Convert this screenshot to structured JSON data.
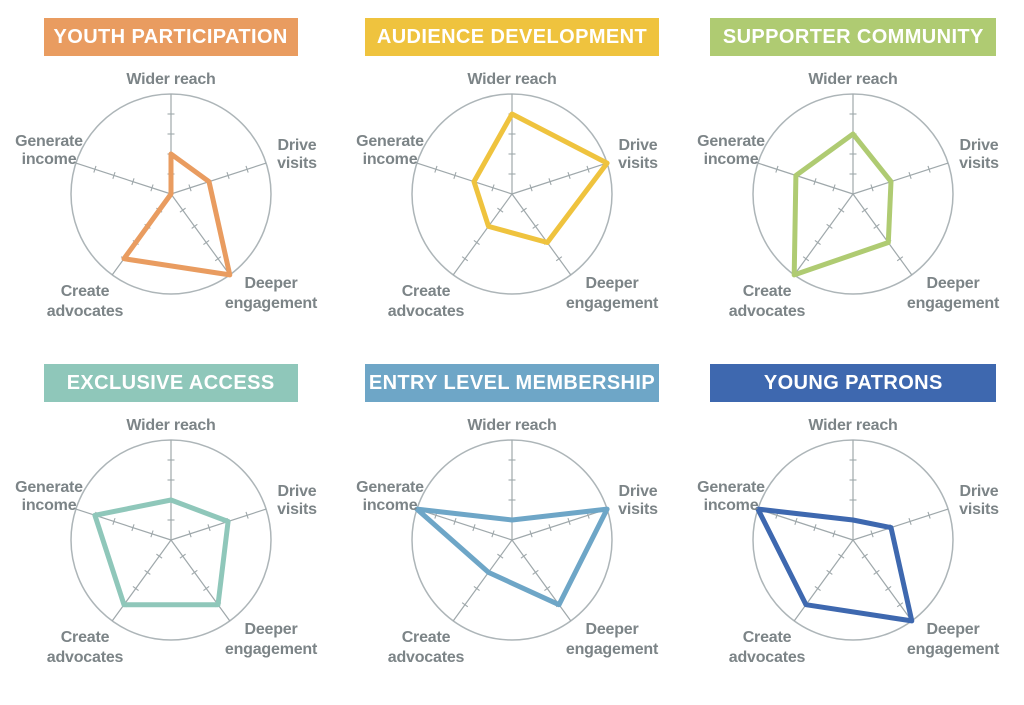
{
  "axes": {
    "categories": [
      "Wider reach",
      "Drive visits",
      "Deeper engagement",
      "Create advocates",
      "Generate income"
    ],
    "label_lines": [
      [
        "Wider reach"
      ],
      [
        "Drive",
        "visits"
      ],
      [
        "Deeper",
        "engagement"
      ],
      [
        "Create",
        "advocates"
      ],
      [
        "Generate",
        "income"
      ]
    ]
  },
  "scale": {
    "min": 0,
    "max": 1,
    "ticks": [
      0.2,
      0.4,
      0.6,
      0.8
    ],
    "tick_labels_shown": false
  },
  "chart_data": [
    {
      "type": "radar",
      "title": "YOUTH PARTICIPATION",
      "color": "#e99c60",
      "categories": [
        "Wider reach",
        "Drive visits",
        "Deeper engagement",
        "Create advocates",
        "Generate income"
      ],
      "values": [
        0.4,
        0.4,
        1.0,
        0.8,
        0.0
      ],
      "range": [
        0,
        1
      ],
      "grid": "circle-with-spokes"
    },
    {
      "type": "radar",
      "title": "AUDIENCE DEVELOPMENT",
      "color": "#efc33e",
      "categories": [
        "Wider reach",
        "Drive visits",
        "Deeper engagement",
        "Create advocates",
        "Generate income"
      ],
      "values": [
        0.8,
        1.0,
        0.6,
        0.4,
        0.4
      ],
      "range": [
        0,
        1
      ],
      "grid": "circle-with-spokes"
    },
    {
      "type": "radar",
      "title": "SUPPORTER COMMUNITY",
      "color": "#afcb72",
      "categories": [
        "Wider reach",
        "Drive visits",
        "Deeper engagement",
        "Create advocates",
        "Generate income"
      ],
      "values": [
        0.6,
        0.4,
        0.6,
        1.0,
        0.6
      ],
      "range": [
        0,
        1
      ],
      "grid": "circle-with-spokes"
    },
    {
      "type": "radar",
      "title": "EXCLUSIVE ACCESS",
      "color": "#8fc7ba",
      "categories": [
        "Wider reach",
        "Drive visits",
        "Deeper engagement",
        "Create advocates",
        "Generate income"
      ],
      "values": [
        0.4,
        0.6,
        0.8,
        0.8,
        0.8
      ],
      "range": [
        0,
        1
      ],
      "grid": "circle-with-spokes"
    },
    {
      "type": "radar",
      "title": "ENTRY LEVEL MEMBERSHIP",
      "color": "#6ea6c7",
      "categories": [
        "Wider reach",
        "Drive visits",
        "Deeper engagement",
        "Create advocates",
        "Generate income"
      ],
      "values": [
        0.2,
        1.0,
        0.8,
        0.4,
        1.0
      ],
      "range": [
        0,
        1
      ],
      "grid": "circle-with-spokes"
    },
    {
      "type": "radar",
      "title": "YOUNG PATRONS",
      "color": "#3e68af",
      "categories": [
        "Wider reach",
        "Drive visits",
        "Deeper engagement",
        "Create advocates",
        "Generate income"
      ],
      "values": [
        0.2,
        0.4,
        1.0,
        0.8,
        1.0
      ],
      "range": [
        0,
        1
      ],
      "grid": "circle-with-spokes"
    }
  ],
  "styles": {
    "circle_color": "#adb5b8",
    "axis_color": "#9fa8ab",
    "label_color": "#7c8487",
    "banner_text_color": "#ffffff",
    "background": "#ffffff"
  }
}
